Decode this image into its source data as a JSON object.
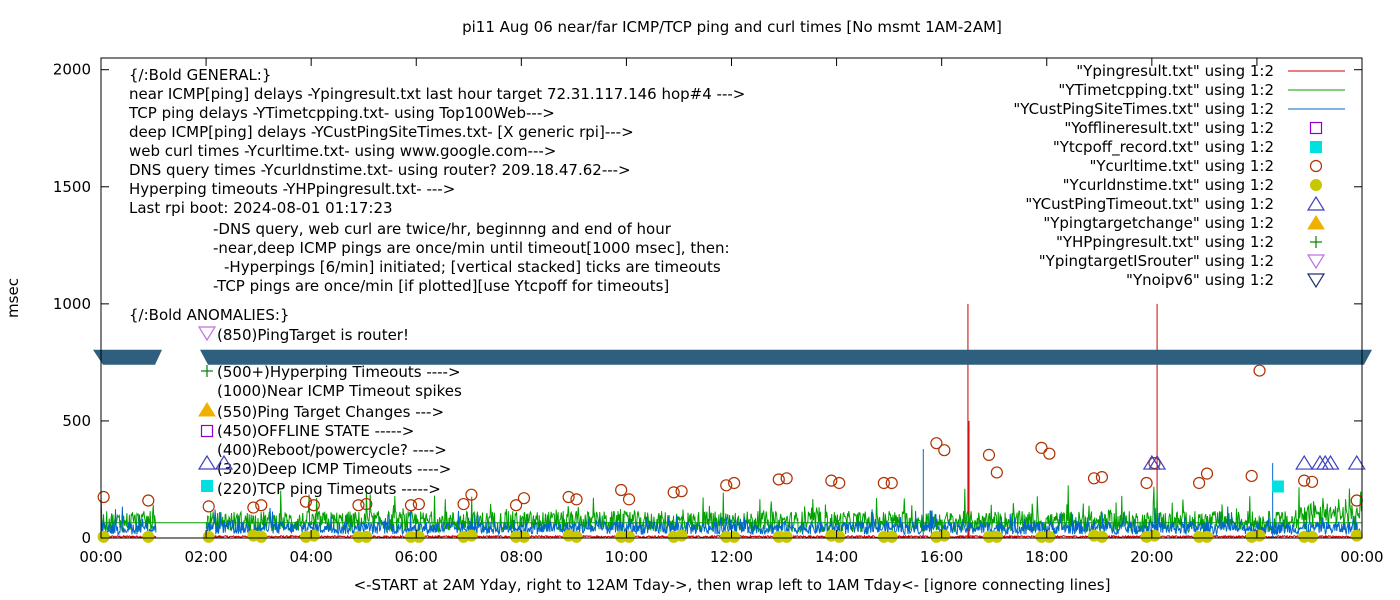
{
  "chart_data": {
    "type": "line",
    "title": "pi11 Aug 06  near/far ICMP/TCP ping and curl times [No msmt 1AM-2AM]",
    "xlabel": "<-START at 2AM Yday, right to 12AM Tday->, then wrap left to 1AM Tday<- [ignore connecting lines]",
    "ylabel": "msec",
    "xlim": [
      0,
      24
    ],
    "ylim": [
      0,
      2050
    ],
    "y_ticks": [
      {
        "v": 0,
        "label": "0"
      },
      {
        "v": 500,
        "label": "500"
      },
      {
        "v": 1000,
        "label": "1000"
      },
      {
        "v": 1500,
        "label": "1500"
      },
      {
        "v": 2000,
        "label": "2000"
      }
    ],
    "x_ticks": [
      {
        "v": 0,
        "label": "00:00"
      },
      {
        "v": 2,
        "label": "02:00"
      },
      {
        "v": 4,
        "label": "04:00"
      },
      {
        "v": 6,
        "label": "06:00"
      },
      {
        "v": 8,
        "label": "08:00"
      },
      {
        "v": 10,
        "label": "10:00"
      },
      {
        "v": 12,
        "label": "12:00"
      },
      {
        "v": 14,
        "label": "14:00"
      },
      {
        "v": 16,
        "label": "16:00"
      },
      {
        "v": 18,
        "label": "18:00"
      },
      {
        "v": 20,
        "label": "20:00"
      },
      {
        "v": 22,
        "label": "22:00"
      },
      {
        "v": 24,
        "label": "00:00"
      }
    ],
    "grid": false,
    "legend_position": "top-right",
    "break_band_y": 770,
    "annotations": [
      "{/:Bold GENERAL:}",
      "near ICMP[ping] delays -Ypingresult.txt last hour target 72.31.117.146 hop#4 --->",
      "TCP ping delays -YTimetcpping.txt- using Top100Web--->",
      "deep ICMP[ping] delays -YCustPingSiteTimes.txt- [X generic rpi]--->",
      "web curl times -Ycurltime.txt- using www.google.com--->",
      "DNS query times -Ycurldnstime.txt- using router? 209.18.47.62--->",
      "Hyperping timeouts -YHPpingresult.txt- --->",
      "Last rpi boot: 2024-08-01 01:17:23",
      "-DNS query, web curl are twice/hr, beginnng and end of hour",
      "-near,deep ICMP pings are once/min until timeout[1000 msec], then:",
      "-Hyperpings [6/min] initiated; [vertical stacked] ticks are timeouts",
      "-TCP pings are once/min [if plotted][use Ytcpoff for timeouts]",
      "{/:Bold ANOMALIES:}",
      "(850)PingTarget is router!",
      "(500+)Hyperping Timeouts ---->",
      "(1000)Near ICMP Timeout spikes",
      "(550)Ping Target Changes --->",
      "(450)OFFLINE STATE ----->",
      "(400)Reboot/powercycle? ---->",
      "(320)Deep ICMP Timeouts ---->",
      "(220)TCP ping Timeouts ----->"
    ],
    "series": [
      {
        "name": "\"Ypingresult.txt\" using 1:2",
        "color": "#cc0000",
        "style": "line",
        "spikes": [
          {
            "x": 16.5,
            "y": 1000
          },
          {
            "x": 16.52,
            "y": 500
          },
          {
            "x": 20.1,
            "y": 1000
          }
        ]
      },
      {
        "name": "\"YTimetcpping.txt\" using 1:2",
        "color": "#00a000",
        "style": "line",
        "baseline": 65
      },
      {
        "name": "\"YCustPingSiteTimes.txt\" using 1:2",
        "color": "#0066cc",
        "style": "line",
        "baseline": 40,
        "spikes": [
          {
            "x": 15.65,
            "y": 380
          },
          {
            "x": 22.3,
            "y": 320
          }
        ]
      },
      {
        "name": "\"Yofflineresult.txt\" using 1:2",
        "color": "#9400d3",
        "style": "open-square",
        "points": []
      },
      {
        "name": "\"Ytcpoff_record.txt\" using 1:2",
        "color": "#00e0e0",
        "style": "filled-square",
        "points": [
          [
            22.4,
            220
          ]
        ]
      },
      {
        "name": "\"Ycurltime.txt\" using 1:2",
        "color": "#b03000",
        "style": "open-circle",
        "points": [
          [
            0.05,
            175
          ],
          [
            0.9,
            160
          ],
          [
            2.05,
            135
          ],
          [
            2.9,
            130
          ],
          [
            3.05,
            140
          ],
          [
            3.9,
            155
          ],
          [
            4.05,
            140
          ],
          [
            4.9,
            140
          ],
          [
            5.05,
            145
          ],
          [
            5.9,
            140
          ],
          [
            6.05,
            145
          ],
          [
            6.9,
            145
          ],
          [
            7.05,
            185
          ],
          [
            7.9,
            140
          ],
          [
            8.05,
            170
          ],
          [
            8.9,
            175
          ],
          [
            9.05,
            165
          ],
          [
            9.9,
            205
          ],
          [
            10.05,
            165
          ],
          [
            10.9,
            195
          ],
          [
            11.05,
            200
          ],
          [
            11.9,
            225
          ],
          [
            12.05,
            235
          ],
          [
            12.9,
            250
          ],
          [
            13.05,
            255
          ],
          [
            13.9,
            245
          ],
          [
            14.05,
            235
          ],
          [
            14.9,
            235
          ],
          [
            15.05,
            235
          ],
          [
            15.9,
            405
          ],
          [
            16.05,
            375
          ],
          [
            16.9,
            355
          ],
          [
            17.05,
            280
          ],
          [
            17.9,
            385
          ],
          [
            18.05,
            360
          ],
          [
            18.9,
            255
          ],
          [
            19.05,
            260
          ],
          [
            19.9,
            235
          ],
          [
            20.05,
            320
          ],
          [
            20.9,
            235
          ],
          [
            21.05,
            275
          ],
          [
            21.9,
            265
          ],
          [
            22.05,
            715
          ],
          [
            22.9,
            245
          ],
          [
            23.05,
            240
          ],
          [
            23.9,
            160
          ]
        ]
      },
      {
        "name": "\"Ycurldnstime.txt\" using 1:2",
        "color": "#c8c800",
        "style": "filled-circle",
        "points": [
          [
            0.05,
            5
          ],
          [
            0.9,
            5
          ],
          [
            2.05,
            5
          ],
          [
            2.9,
            10
          ],
          [
            3.05,
            5
          ],
          [
            3.9,
            5
          ],
          [
            4.05,
            10
          ],
          [
            4.9,
            5
          ],
          [
            5.05,
            5
          ],
          [
            5.9,
            5
          ],
          [
            6.05,
            5
          ],
          [
            6.9,
            5
          ],
          [
            7.05,
            10
          ],
          [
            7.9,
            5
          ],
          [
            8.05,
            5
          ],
          [
            8.9,
            10
          ],
          [
            9.05,
            5
          ],
          [
            9.9,
            5
          ],
          [
            10.05,
            5
          ],
          [
            10.9,
            5
          ],
          [
            11.05,
            10
          ],
          [
            11.9,
            5
          ],
          [
            12.05,
            5
          ],
          [
            12.9,
            5
          ],
          [
            13.05,
            5
          ],
          [
            13.9,
            10
          ],
          [
            14.05,
            5
          ],
          [
            14.9,
            5
          ],
          [
            15.05,
            5
          ],
          [
            15.9,
            5
          ],
          [
            16.05,
            10
          ],
          [
            16.9,
            5
          ],
          [
            17.05,
            5
          ],
          [
            17.9,
            5
          ],
          [
            18.05,
            5
          ],
          [
            18.9,
            10
          ],
          [
            19.05,
            5
          ],
          [
            19.9,
            5
          ],
          [
            20.05,
            10
          ],
          [
            20.9,
            5
          ],
          [
            21.05,
            5
          ],
          [
            21.9,
            5
          ],
          [
            22.05,
            10
          ],
          [
            22.9,
            5
          ],
          [
            23.05,
            5
          ],
          [
            23.9,
            10
          ]
        ]
      },
      {
        "name": "\"YCustPingTimeout.txt\" using 1:2",
        "color": "#4040c0",
        "style": "open-triangle",
        "points": [
          [
            20.0,
            320
          ],
          [
            20.1,
            320
          ],
          [
            22.9,
            320
          ],
          [
            23.2,
            320
          ],
          [
            23.3,
            320
          ],
          [
            23.4,
            320
          ],
          [
            23.9,
            320
          ]
        ]
      },
      {
        "name": "\"Ypingtargetchange\" using 1:2",
        "color": "#f0b000",
        "style": "filled-triangle",
        "points": []
      },
      {
        "name": "\"YHPpingresult.txt\" using 1:2",
        "color": "#008000",
        "style": "plus",
        "points": []
      },
      {
        "name": "\"YpingtargetISrouter\" using 1:2",
        "color": "#c070e0",
        "style": "open-triangle-down",
        "points": []
      },
      {
        "name": "\"Ynoipv6\" using 1:2",
        "color": "#203070",
        "style": "open-triangle-down",
        "points": []
      }
    ]
  }
}
